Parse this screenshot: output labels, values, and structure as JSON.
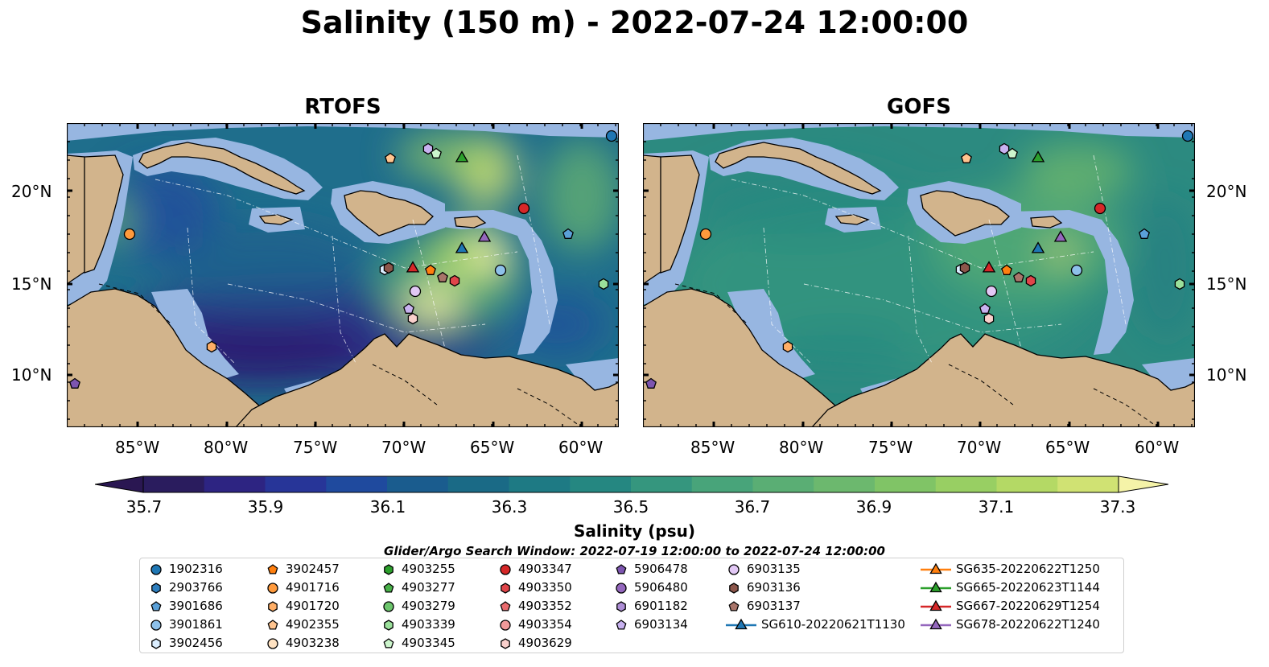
{
  "figure": {
    "title": "Salinity (150 m) - 2022-07-24 12:00:00",
    "panels": [
      {
        "title": "RTOFS",
        "scheme": "rtofs"
      },
      {
        "title": "GOFS",
        "scheme": "gofs"
      }
    ],
    "lat_labels": [
      "20°N",
      "15°N",
      "10°N"
    ],
    "lon_labels": [
      "85°W",
      "80°W",
      "75°W",
      "70°W",
      "65°W",
      "60°W"
    ]
  },
  "colorbar": {
    "ticks": [
      "35.7",
      "35.9",
      "36.1",
      "36.3",
      "36.5",
      "36.7",
      "36.9",
      "37.1",
      "37.3"
    ],
    "label": "Salinity (psu)",
    "colors": [
      "#2a1c5e",
      "#2d2482",
      "#273598",
      "#1f4a9e",
      "#1a5c8e",
      "#1a6a86",
      "#1e7a84",
      "#258781",
      "#35967e",
      "#48a47a",
      "#5aae74",
      "#6cb86e",
      "#80c466",
      "#98cf63",
      "#b4d965",
      "#d0e273"
    ],
    "extend_low_color": "#2a1752",
    "extend_high_color": "#f5f3a8"
  },
  "map_colors": {
    "land": "#d2b48c",
    "shelf": "#97b6e1",
    "deep_background": "#2a1c5e"
  },
  "search_window": "Glider/Argo Search Window: 2022-07-19 12:00:00 to 2022-07-24 12:00:00",
  "legend": {
    "columns": [
      [
        {
          "label": "1902316",
          "marker": "circle",
          "color": "#1f77b4"
        },
        {
          "label": "2903766",
          "marker": "hexagon",
          "color": "#2e7fbf"
        },
        {
          "label": "3901686",
          "marker": "pentagon",
          "color": "#5aa0d8"
        },
        {
          "label": "3901861",
          "marker": "circle",
          "color": "#8ec1ea"
        },
        {
          "label": "3902456",
          "marker": "hexagon",
          "color": "#dbeeff"
        }
      ],
      [
        {
          "label": "3902457",
          "marker": "pentagon",
          "color": "#ff7f0e"
        },
        {
          "label": "4901716",
          "marker": "circle",
          "color": "#ff9a3c"
        },
        {
          "label": "4901720",
          "marker": "hexagon",
          "color": "#ffae66"
        },
        {
          "label": "4902355",
          "marker": "pentagon",
          "color": "#ffc48f"
        },
        {
          "label": "4903238",
          "marker": "circle",
          "color": "#ffe2c2"
        }
      ],
      [
        {
          "label": "4903255",
          "marker": "hexagon",
          "color": "#2ca02c"
        },
        {
          "label": "4903277",
          "marker": "pentagon",
          "color": "#48b048"
        },
        {
          "label": "4903279",
          "marker": "circle",
          "color": "#6cc56c"
        },
        {
          "label": "4903339",
          "marker": "hexagon",
          "color": "#9be09b"
        },
        {
          "label": "4903345",
          "marker": "pentagon",
          "color": "#ccf5cc"
        }
      ],
      [
        {
          "label": "4903347",
          "marker": "circle",
          "color": "#d62728"
        },
        {
          "label": "4903350",
          "marker": "hexagon",
          "color": "#e0454a"
        },
        {
          "label": "4903352",
          "marker": "pentagon",
          "color": "#e96b6e"
        },
        {
          "label": "4903354",
          "marker": "circle",
          "color": "#f09a9a"
        },
        {
          "label": "4903629",
          "marker": "hexagon",
          "color": "#f9d0cc"
        }
      ],
      [
        {
          "label": "5906478",
          "marker": "pentagon",
          "color": "#7d55b0"
        },
        {
          "label": "5906480",
          "marker": "circle",
          "color": "#9467bd"
        },
        {
          "label": "6901182",
          "marker": "hexagon",
          "color": "#ae8ed6"
        },
        {
          "label": "6903134",
          "marker": "pentagon",
          "color": "#c8b2f0"
        }
      ],
      [
        {
          "label": "6903135",
          "marker": "circle",
          "color": "#e2c8f5"
        },
        {
          "label": "6903136",
          "marker": "hexagon",
          "color": "#8c564b"
        },
        {
          "label": "6903137",
          "marker": "pentagon",
          "color": "#a9756a"
        },
        {
          "label": "SG610-20220621T1130",
          "marker": "triangle-line",
          "color": "#1f77b4"
        }
      ],
      [
        {
          "label": "SG635-20220622T1250",
          "marker": "triangle-line",
          "color": "#ff7f0e"
        },
        {
          "label": "SG665-20220623T1144",
          "marker": "triangle-line",
          "color": "#2ca02c"
        },
        {
          "label": "SG667-20220629T1254",
          "marker": "triangle-line",
          "color": "#d62728"
        },
        {
          "label": "SG678-20220622T1240",
          "marker": "triangle-line",
          "color": "#9467bd"
        }
      ]
    ]
  }
}
